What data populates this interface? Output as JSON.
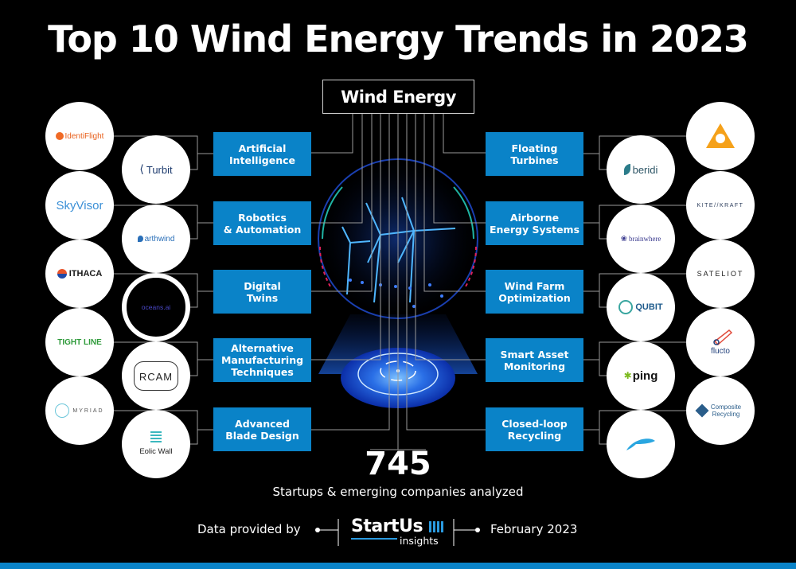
{
  "title": "Top 10 Wind Energy Trends in 2023",
  "root": "Wind Energy",
  "colors": {
    "accent": "#0a83c8",
    "background": "#000000",
    "wire": "#9a9a9a"
  },
  "topics_left": [
    {
      "label": "Artificial\nIntelligence",
      "outer_logo": {
        "name": "IdentiFlight"
      },
      "inner_logo": {
        "name": "Turbit"
      }
    },
    {
      "label": "Robotics\n& Automation",
      "outer_logo": {
        "name": "SkyVisor"
      },
      "inner_logo": {
        "name": "arthwind"
      }
    },
    {
      "label": "Digital\nTwins",
      "outer_logo": {
        "name": "ITHACA"
      },
      "inner_logo": {
        "name": "oceans.ai"
      }
    },
    {
      "label": "Alternative\nManufacturing\nTechniques",
      "outer_logo": {
        "name": "TIGHT LINE"
      },
      "inner_logo": {
        "name": "RCAM"
      }
    },
    {
      "label": "Advanced\nBlade Design",
      "outer_logo": {
        "name": "MYRIAD"
      },
      "inner_logo": {
        "name": "Eolic Wall"
      }
    }
  ],
  "topics_right": [
    {
      "label": "Floating\nTurbines",
      "outer_logo": {
        "name": "orange-triangle-logo"
      },
      "inner_logo": {
        "name": "beridi"
      }
    },
    {
      "label": "Airborne\nEnergy Systems",
      "outer_logo": {
        "name": "KITE//KRAFT"
      },
      "inner_logo": {
        "name": "brainwhere"
      }
    },
    {
      "label": "Wind Farm\nOptimization",
      "outer_logo": {
        "name": "SATELIOT"
      },
      "inner_logo": {
        "name": "QUBIT"
      }
    },
    {
      "label": "Smart Asset\nMonitoring",
      "outer_logo": {
        "name": "flucto"
      },
      "inner_logo": {
        "name": "ping"
      }
    },
    {
      "label": "Closed-loop\nRecycling",
      "outer_logo": {
        "name": "Composite Recycling"
      },
      "inner_logo": {
        "name": "blue-swoosh-logo"
      }
    }
  ],
  "stats": {
    "count": "745",
    "label": "Startups & emerging companies analyzed"
  },
  "footer": {
    "provided_by": "Data provided by",
    "brand": "StartUs",
    "brand_sub": "insights",
    "date": "February 2023"
  }
}
